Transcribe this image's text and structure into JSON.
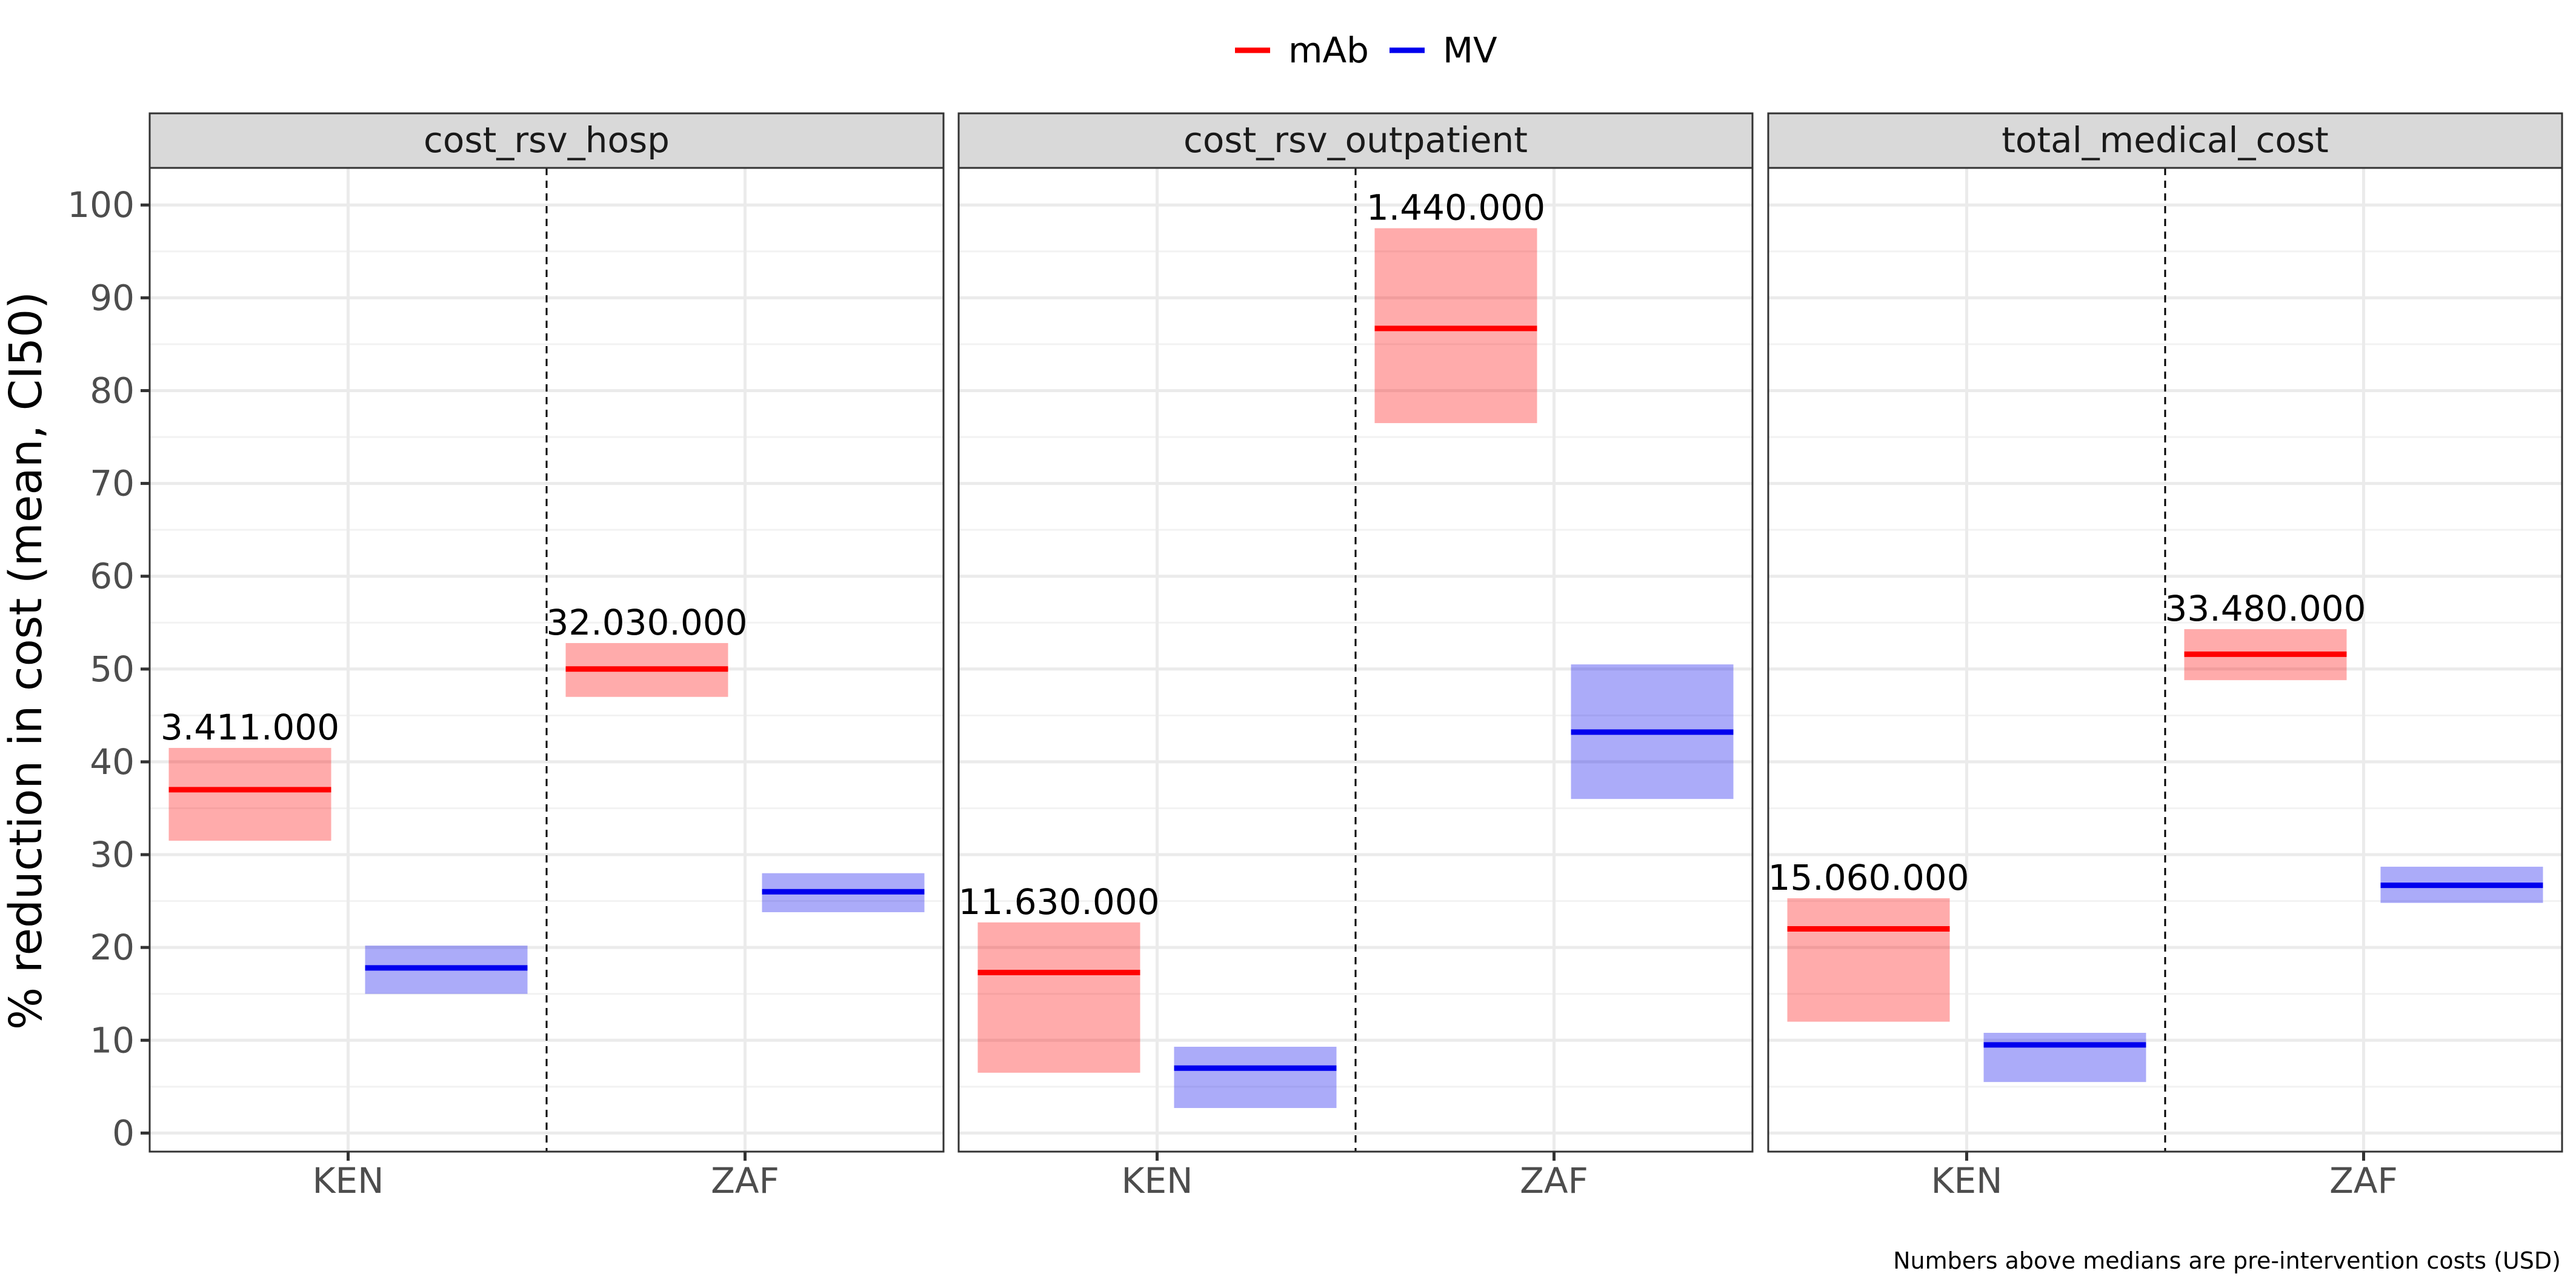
{
  "chart_data": {
    "type": "bar",
    "ylabel": "% reduction in cost (mean, CI50)",
    "caption": "Numbers above medians are pre-intervention costs (USD)",
    "ylim": [
      -2,
      104
    ],
    "yticks": [
      0,
      10,
      20,
      30,
      40,
      50,
      60,
      70,
      80,
      90,
      100
    ],
    "grid": true,
    "legend": {
      "position": "top",
      "entries": [
        {
          "name": "mAb",
          "color": "#ff0000"
        },
        {
          "name": "MV",
          "color": "#0000ee"
        }
      ]
    },
    "categories": [
      "KEN",
      "ZAF"
    ],
    "panels": [
      {
        "title": "cost_rsv_hosp",
        "series": [
          {
            "name": "mAb",
            "color": "#ff0000",
            "mean": [
              37.0,
              50.0
            ],
            "low": [
              31.5,
              47.0
            ],
            "high": [
              41.5,
              52.8
            ],
            "labels": [
              "3.411.000",
              "32.030.000"
            ]
          },
          {
            "name": "MV",
            "color": "#0000ee",
            "mean": [
              17.8,
              26.0
            ],
            "low": [
              15.0,
              23.8
            ],
            "high": [
              20.2,
              28.0
            ],
            "labels": [
              "",
              ""
            ]
          }
        ]
      },
      {
        "title": "cost_rsv_outpatient",
        "series": [
          {
            "name": "mAb",
            "color": "#ff0000",
            "mean": [
              17.3,
              86.7
            ],
            "low": [
              6.5,
              76.5
            ],
            "high": [
              22.7,
              97.5
            ],
            "labels": [
              "11.630.000",
              "1.440.000"
            ]
          },
          {
            "name": "MV",
            "color": "#0000ee",
            "mean": [
              7.0,
              43.2
            ],
            "low": [
              2.7,
              36.0
            ],
            "high": [
              9.3,
              50.5
            ],
            "labels": [
              "",
              ""
            ]
          }
        ]
      },
      {
        "title": "total_medical_cost",
        "series": [
          {
            "name": "mAb",
            "color": "#ff0000",
            "mean": [
              22.0,
              51.6
            ],
            "low": [
              12.0,
              48.8
            ],
            "high": [
              25.3,
              54.3
            ],
            "labels": [
              "15.060.000",
              "33.480.000"
            ]
          },
          {
            "name": "MV",
            "color": "#0000ee",
            "mean": [
              9.5,
              26.7
            ],
            "low": [
              5.5,
              24.8
            ],
            "high": [
              10.8,
              28.7
            ],
            "labels": [
              "",
              ""
            ]
          }
        ]
      }
    ]
  }
}
